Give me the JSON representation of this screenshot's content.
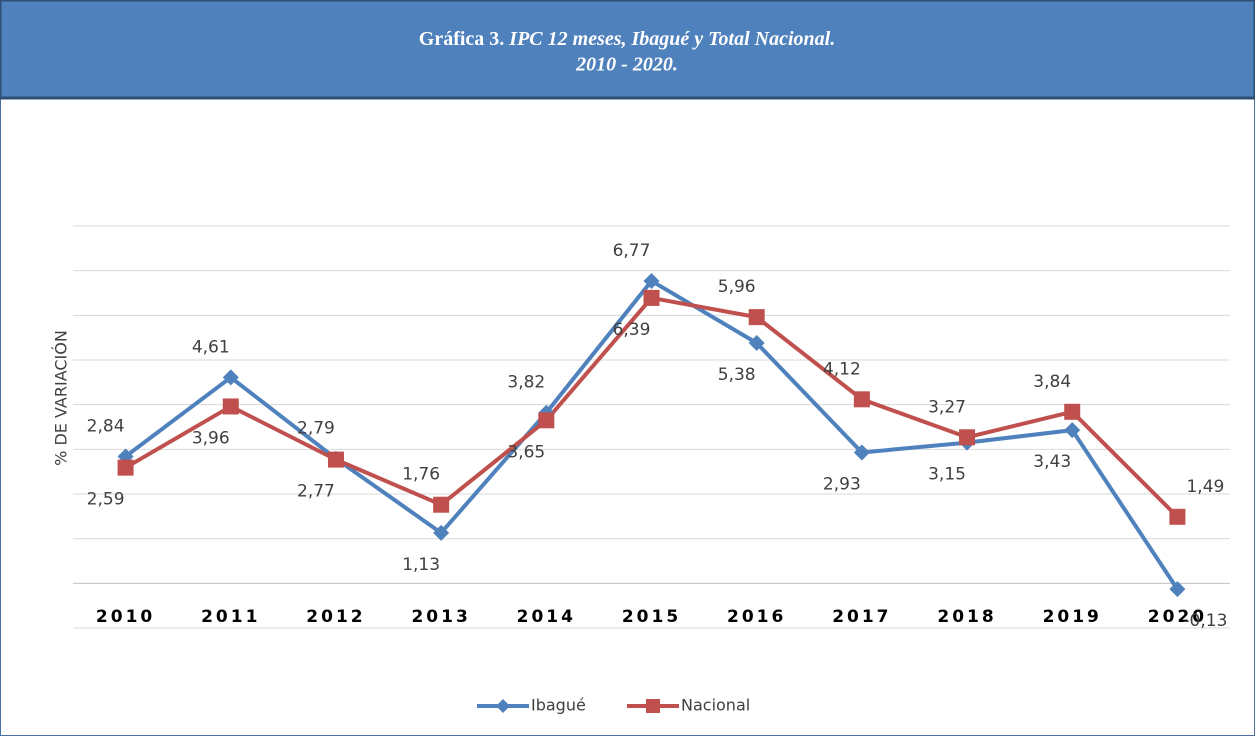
{
  "chart_data": {
    "type": "line",
    "title": "Gráfica 3.",
    "subtitle": "IPC 12 meses, Ibagué y Total Nacional.",
    "subtitle2": "2010 - 2020.",
    "y_label": "% DE VARIACIÓN",
    "categories": [
      "2010",
      "2011",
      "2012",
      "2013",
      "2014",
      "2015",
      "2016",
      "2017",
      "2018",
      "2019",
      "2020"
    ],
    "series": [
      {
        "name": "Ibagué",
        "color": "#4f81bd",
        "marker": "diamond",
        "values": [
          2.84,
          4.61,
          2.79,
          1.13,
          3.82,
          6.77,
          5.38,
          2.93,
          3.15,
          3.43,
          -0.13
        ],
        "value_labels": [
          "2,84",
          "4,61",
          "2,79",
          "1,13",
          "3,82",
          "6,77",
          "5,38",
          "2,93",
          "3,15",
          "3,43",
          "-0,13"
        ]
      },
      {
        "name": "Nacional",
        "color": "#c0504d",
        "marker": "square",
        "values": [
          2.59,
          3.96,
          2.77,
          1.76,
          3.65,
          6.39,
          5.96,
          4.12,
          3.27,
          3.84,
          1.49
        ],
        "value_labels": [
          "2,59",
          "3,96",
          "2,77",
          "1,76",
          "3,65",
          "6,39",
          "5,96",
          "4,12",
          "3,27",
          "3,84",
          "1,49"
        ]
      }
    ],
    "ylim": [
      -1,
      8
    ],
    "yticks": [
      -1,
      0,
      1,
      2,
      3,
      4,
      5,
      6,
      7,
      8
    ],
    "grid": true,
    "legend": "bottom"
  }
}
